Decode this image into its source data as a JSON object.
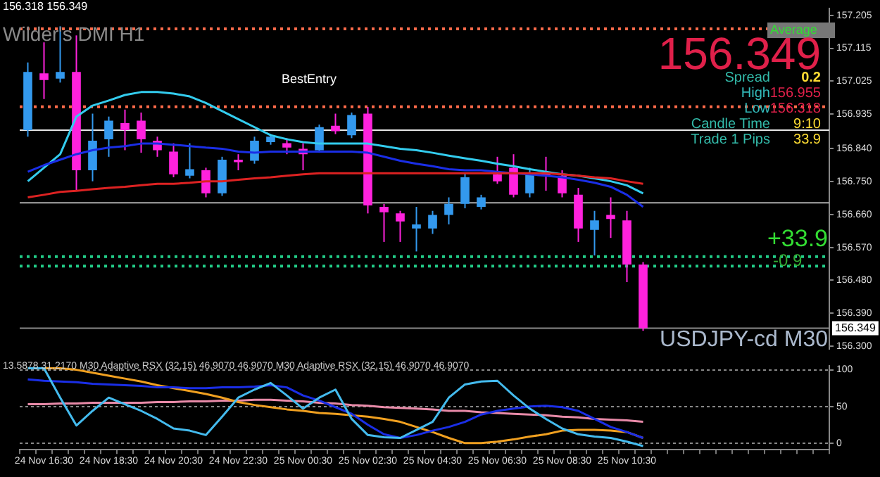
{
  "chart_data": [
    {
      "type": "candlestick",
      "categories": [
        null,
        null,
        null,
        null,
        null,
        null,
        null,
        null,
        null,
        null,
        null,
        null,
        null,
        null,
        null,
        null,
        null,
        null,
        null,
        null,
        null,
        null,
        null,
        null,
        null,
        null,
        null,
        null,
        null,
        null,
        null,
        null,
        null,
        null,
        null,
        null,
        null,
        null,
        null
      ],
      "ohlc": [
        [
          156.891,
          157.076,
          156.873,
          157.05
        ],
        [
          157.046,
          157.131,
          156.976,
          157.028
        ],
        [
          157.032,
          157.175,
          157.021,
          157.05
        ],
        [
          157.05,
          157.15,
          156.725,
          156.781
        ],
        [
          156.781,
          156.936,
          156.751,
          156.862
        ],
        [
          156.866,
          156.928,
          156.818,
          156.917
        ],
        [
          156.91,
          156.947,
          156.836,
          156.891
        ],
        [
          156.917,
          156.939,
          156.829,
          156.866
        ],
        [
          156.862,
          156.873,
          156.818,
          156.836
        ],
        [
          156.832,
          156.855,
          156.762,
          156.77
        ],
        [
          156.766,
          156.855,
          156.759,
          156.784
        ],
        [
          156.781,
          156.788,
          156.707,
          156.718
        ],
        [
          156.718,
          156.818,
          156.711,
          156.81
        ],
        [
          156.81,
          156.825,
          156.781,
          156.803
        ],
        [
          156.807,
          156.873,
          156.799,
          156.862
        ],
        [
          156.858,
          156.88,
          156.851,
          156.873
        ],
        [
          156.855,
          156.869,
          156.825,
          156.843
        ],
        [
          156.84,
          156.855,
          156.781,
          156.825
        ],
        [
          156.836,
          156.906,
          156.829,
          156.899
        ],
        [
          156.903,
          156.936,
          156.88,
          156.888
        ],
        [
          156.877,
          156.939,
          156.869,
          156.932
        ],
        [
          156.936,
          156.954,
          156.663,
          156.685
        ],
        [
          156.681,
          156.689,
          156.585,
          156.666
        ],
        [
          156.663,
          156.67,
          156.585,
          156.641
        ],
        [
          156.622,
          156.681,
          156.559,
          156.633
        ],
        [
          156.622,
          156.67,
          156.607,
          156.659
        ],
        [
          156.659,
          156.707,
          156.633,
          156.689
        ],
        [
          156.689,
          156.773,
          156.677,
          156.762
        ],
        [
          156.681,
          156.714,
          156.674,
          156.707
        ],
        [
          156.77,
          156.818,
          156.744,
          156.751
        ],
        [
          156.788,
          156.825,
          156.707,
          156.714
        ],
        [
          156.718,
          156.788,
          156.707,
          156.77
        ],
        [
          156.773,
          156.818,
          156.725,
          156.766
        ],
        [
          156.766,
          156.781,
          156.707,
          156.718
        ],
        [
          156.714,
          156.733,
          156.585,
          156.622
        ],
        [
          156.618,
          156.67,
          156.548,
          156.644
        ],
        [
          156.659,
          156.707,
          156.596,
          156.648
        ],
        [
          156.644,
          156.67,
          156.475,
          156.523
        ],
        [
          156.523,
          156.53,
          156.342,
          156.349
        ]
      ],
      "colors": [
        "#3399ee",
        "#ff22dd",
        "#3399ee",
        "#ff22dd",
        "#3399ee",
        "#3399ee",
        "#ff22dd",
        "#ff22dd",
        "#ff22dd",
        "#ff22dd",
        "#3399ee",
        "#ff22dd",
        "#3399ee",
        "#ff22dd",
        "#3399ee",
        "#3399ee",
        "#ff22dd",
        "#ff22dd",
        "#3399ee",
        "#ff22dd",
        "#3399ee",
        "#ff22dd",
        "#ff22dd",
        "#ff22dd",
        "#3399ee",
        "#3399ee",
        "#3399ee",
        "#3399ee",
        "#3399ee",
        "#ff22dd",
        "#ff22dd",
        "#3399ee",
        "#ff22dd",
        "#ff22dd",
        "#ff22dd",
        "#3399ee",
        "#ff22dd",
        "#ff22dd",
        "#ff22dd"
      ],
      "series": [
        {
          "type": "line",
          "color": "#33ccee",
          "values": [
            156.751,
            156.788,
            156.825,
            156.928,
            156.958,
            156.972,
            156.987,
            156.995,
            156.995,
            156.991,
            156.983,
            156.965,
            156.943,
            156.921,
            156.899,
            156.877,
            156.866,
            156.858,
            156.854,
            156.854,
            156.854,
            156.854,
            156.847,
            156.84,
            156.836,
            156.829,
            156.821,
            156.814,
            156.807,
            156.799,
            156.792,
            156.784,
            156.777,
            156.77,
            156.766,
            156.759,
            156.751,
            156.74,
            156.718
          ]
        },
        {
          "type": "line",
          "color": "#1a2ee6",
          "values": [
            156.777,
            156.795,
            156.81,
            156.825,
            156.836,
            156.843,
            156.847,
            156.854,
            156.854,
            156.851,
            156.847,
            156.843,
            156.84,
            156.832,
            156.829,
            156.832,
            156.832,
            156.832,
            156.832,
            156.832,
            156.832,
            156.829,
            156.818,
            156.807,
            156.799,
            156.792,
            156.784,
            156.781,
            156.781,
            156.777,
            156.773,
            156.77,
            156.766,
            156.762,
            156.755,
            156.747,
            156.736,
            156.714,
            156.681
          ]
        },
        {
          "type": "line",
          "color": "#dd2222",
          "values": [
            156.707,
            156.714,
            156.722,
            156.725,
            156.729,
            156.733,
            156.736,
            156.74,
            156.744,
            156.744,
            156.747,
            156.751,
            156.751,
            156.755,
            156.759,
            156.762,
            156.766,
            156.77,
            156.773,
            156.773,
            156.773,
            156.773,
            156.773,
            156.773,
            156.773,
            156.773,
            156.773,
            156.773,
            156.773,
            156.773,
            156.773,
            156.773,
            156.773,
            156.77,
            156.766,
            156.762,
            156.759,
            156.751,
            156.744
          ]
        }
      ],
      "ylim": [
        156.293,
        157.223
      ],
      "yticks": [
        157.205,
        157.115,
        157.025,
        156.935,
        {
          "value": 156.84,
          "label": "156.840"
        },
        {
          "value": 156.75,
          "label": "156.750"
        },
        {
          "value": 156.66,
          "label": "156.660"
        },
        {
          "value": 156.57,
          "label": "156.570"
        },
        {
          "value": 156.48,
          "label": "156.480"
        },
        {
          "value": 156.39,
          "label": "156.390"
        },
        {
          "value": 156.3,
          "label": "156.300"
        }
      ],
      "tick_labels": "y",
      "ref_lines": [
        {
          "axis": "y",
          "value": 157.168,
          "color": "#ff6a4a",
          "line_style": "dotted"
        },
        {
          "axis": "y",
          "value": 156.955,
          "color": "#ff6a4a",
          "line_style": "dotted"
        },
        {
          "axis": "y",
          "value": 156.891,
          "color": "#e6e6e6",
          "line_style": "solid"
        },
        {
          "axis": "y",
          "value": 156.692,
          "color": "#aaaaaa",
          "line_style": "solid"
        },
        {
          "axis": "y",
          "value": 156.545,
          "color": "#22cc88",
          "line_style": "dotted"
        },
        {
          "axis": "y",
          "value": 156.519,
          "color": "#22cc88",
          "line_style": "dotted"
        },
        {
          "axis": "y",
          "value": 156.349,
          "color": "#888888",
          "line_style": "solid",
          "label": "156.349"
        }
      ],
      "annotations": [
        "156.318 156.349",
        "Wilder's DMI H1",
        "BestEntry",
        "Average",
        "156.349",
        "Spread",
        "0.2",
        "High",
        "156.955",
        "Low",
        "156.318",
        "Candle Time",
        "9:10",
        "Trade 1 Pips",
        "33.9",
        "+33.9",
        "-0.9",
        "USDJPY-cd M30"
      ]
    },
    {
      "type": "line",
      "categories": [
        null,
        "24 Nov 16:30",
        null,
        null,
        null,
        "24 Nov 18:30",
        null,
        null,
        null,
        "24 Nov 20:30",
        null,
        null,
        null,
        "24 Nov 22:30",
        null,
        null,
        null,
        "25 Nov 00:30",
        null,
        null,
        null,
        "25 Nov 02:30",
        null,
        null,
        null,
        "25 Nov 04:30",
        null,
        null,
        null,
        "25 Nov 06:30",
        null,
        null,
        null,
        "25 Nov 08:30",
        null,
        null,
        null,
        "25 Nov 10:30",
        null
      ],
      "series": [
        {
          "color": "#e88aa8",
          "values": [
            53,
            53,
            54,
            54,
            55,
            55,
            55,
            55,
            56,
            56,
            57,
            57,
            58,
            58,
            59,
            59,
            58,
            57,
            55,
            54,
            52,
            51,
            49,
            48,
            47,
            46,
            44,
            44,
            42,
            41,
            40,
            39,
            38,
            36,
            35,
            33,
            32,
            31,
            29
          ]
        },
        {
          "color": "#f0a020",
          "values": [
            102,
            102,
            102,
            100,
            96,
            92,
            88,
            84,
            79,
            75,
            71,
            67,
            62,
            56,
            52,
            49,
            46,
            44,
            41,
            40,
            38,
            36,
            33,
            29,
            22,
            15,
            7,
            0,
            0,
            2,
            5,
            9,
            12,
            17,
            18,
            18,
            17,
            15,
            7
          ]
        },
        {
          "color": "#1a2ee6",
          "values": [
            87,
            85,
            84,
            83,
            81,
            80,
            79,
            78,
            76,
            76,
            75,
            75,
            76,
            76,
            77,
            79,
            76,
            65,
            58,
            49,
            40,
            25,
            12,
            7,
            11,
            17,
            22,
            29,
            39,
            44,
            47,
            50,
            51,
            49,
            44,
            33,
            22,
            15,
            7
          ]
        },
        {
          "color": "#44bbee",
          "values": [
            102,
            102,
            62,
            24,
            44,
            62,
            53,
            44,
            33,
            20,
            17,
            11,
            36,
            62,
            73,
            82,
            65,
            47,
            62,
            73,
            33,
            11,
            8,
            7,
            18,
            29,
            62,
            80,
            84,
            85,
            65,
            47,
            33,
            20,
            12,
            9,
            7,
            2,
            -4
          ]
        }
      ],
      "ylim": [
        -9,
        105
      ],
      "yticks": [
        100,
        50,
        0
      ],
      "grid": "y",
      "annotations": [
        "13.5878 31.2170 M30 Adaptive RSX (32,15) 46.9070 46.9070 M30 Adaptive RSX (32,15) 46.9070 46.9070"
      ]
    }
  ]
}
